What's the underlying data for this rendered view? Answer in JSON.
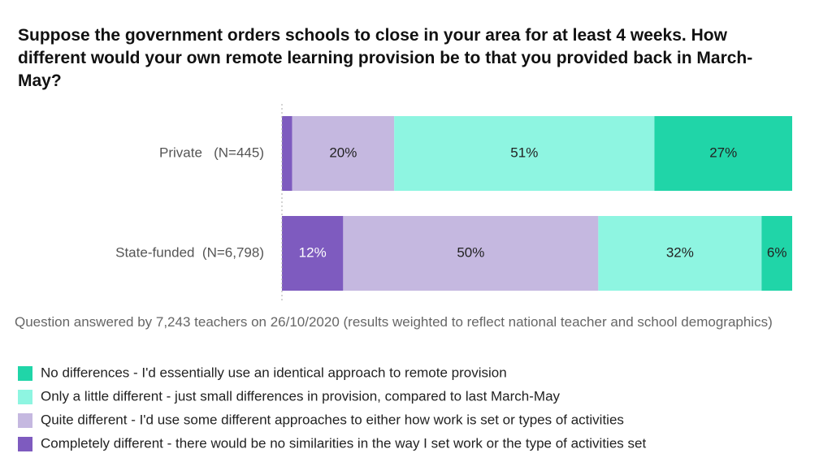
{
  "chart_data": {
    "type": "stacked-barh",
    "title": "Suppose the government orders schools to close in your area for at least 4 weeks. How different would your own remote learning provision be to that you provided back in March-May?",
    "note": "Question answered by 7,243 teachers on 26/10/2020 (results weighted to reflect national teacher and school demographics)",
    "categories": [
      "Private   (N=445)",
      "State-funded  (N=6,798)"
    ],
    "series": [
      {
        "name": "Completely different - there would be no similarities in the way I set work or the type of activities set",
        "color": "#7e5bbf",
        "values": [
          2,
          12
        ],
        "value_labels": [
          null,
          "12%"
        ]
      },
      {
        "name": "Quite different - I'd use some different approaches to either how work is set or types of activities",
        "color": "#c5b8e0",
        "values": [
          20,
          50
        ],
        "value_labels": [
          "20%",
          "50%"
        ]
      },
      {
        "name": "Only a little different - just small differences in provision, compared to last March-May",
        "color": "#8ef5e1",
        "values": [
          51,
          32
        ],
        "value_labels": [
          "51%",
          "32%"
        ]
      },
      {
        "name": "No differences - I'd essentially use an identical approach to remote provision",
        "color": "#20d5a8",
        "values": [
          27,
          6
        ],
        "value_labels": [
          "27%",
          "6%"
        ]
      }
    ],
    "xlim": [
      0,
      100
    ]
  }
}
